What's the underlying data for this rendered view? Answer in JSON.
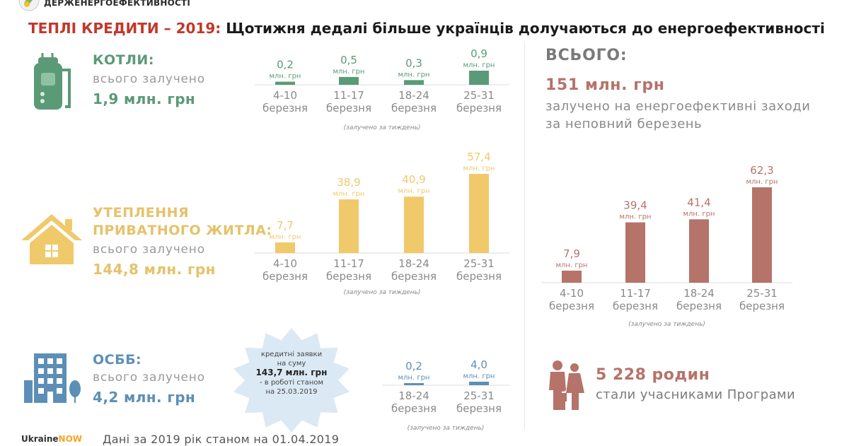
{
  "header": {
    "agency": "ДЕРЖЕНЕРГОЕФЕКТИВНОСТІ",
    "headline_red": "ТЕПЛІ КРЕДИТИ – 2019:",
    "headline_rest": " Щотижня дедалі більше українців долучаються до енергоефективності"
  },
  "categories": {
    "boilers": {
      "title": "КОТЛИ:",
      "subtitle": "всього залучено",
      "amount": "1,9 млн. грн"
    },
    "housing": {
      "title_line1": "УТЕПЛЕННЯ",
      "title_line2": "ПРИВАТНОГО ЖИТЛА:",
      "subtitle": "всього залучено",
      "amount": "144,8 млн. грн"
    },
    "osbb": {
      "title": "ОСББ:",
      "subtitle": "всього залучено",
      "amount": "4,2 млн. грн"
    }
  },
  "total": {
    "title": "ВСЬОГО:",
    "amount": "151 млн. грн",
    "description": "залучено на енергоефективні заходи за неповний березень"
  },
  "starburst": {
    "line1": "кредитні заявки",
    "line2": "на суму",
    "amount": "143,7 млн. грн",
    "line3": "- в роботі станом",
    "line4": "на 25.03.2019"
  },
  "families": {
    "count": "5 228 родин",
    "description": "стали учасниками Програми"
  },
  "footer": {
    "logo_main": "Ukraine",
    "logo_accent": "NOW",
    "note": "Дані за 2019 рік станом на 01.04.2019"
  },
  "colors": {
    "green": "#5a9a77",
    "yellow": "#f0c96b",
    "blue": "#5d8fb6",
    "brown": "#b5736a",
    "red": "#c0392b"
  },
  "icons": [
    "boiler-icon",
    "house-icon",
    "apartment-building-icon",
    "family-icon",
    "ukraine-now-logo"
  ],
  "chart_data": [
    {
      "id": "boilers",
      "type": "bar",
      "categories": [
        "4-10|березня",
        "11-17|березня",
        "18-24|березня",
        "25-31|березня"
      ],
      "values": [
        0.2,
        0.5,
        0.3,
        0.9
      ],
      "value_labels": [
        "0,2",
        "0,5",
        "0,3",
        "0,9"
      ],
      "unit": "млн. грн",
      "caption": "(залучено за тиждень)",
      "color": "#5a9a77"
    },
    {
      "id": "housing",
      "type": "bar",
      "categories": [
        "4-10|березня",
        "11-17|березня",
        "18-24|березня",
        "25-31|березня"
      ],
      "values": [
        7.7,
        38.9,
        40.9,
        57.4
      ],
      "value_labels": [
        "7,7",
        "38,9",
        "40,9",
        "57,4"
      ],
      "unit": "млн. грн",
      "caption": "(залучено за тиждень)",
      "color": "#f0c96b"
    },
    {
      "id": "osbb",
      "type": "bar",
      "categories": [
        "18-24|березня",
        "25-31|березня"
      ],
      "values": [
        0.2,
        4.0
      ],
      "value_labels": [
        "0,2",
        "4,0"
      ],
      "unit": "млн. грн",
      "caption": "(залучено за тиждень)",
      "color": "#5d8fb6"
    },
    {
      "id": "total",
      "type": "bar",
      "categories": [
        "4-10|березня",
        "11-17|березня",
        "18-24|березня",
        "25-31|березня"
      ],
      "values": [
        7.9,
        39.4,
        41.4,
        62.3
      ],
      "value_labels": [
        "7,9",
        "39,4",
        "41,4",
        "62,3"
      ],
      "unit": "млн. грн",
      "caption": "(залучено за тиждень)",
      "color": "#b5736a"
    }
  ]
}
